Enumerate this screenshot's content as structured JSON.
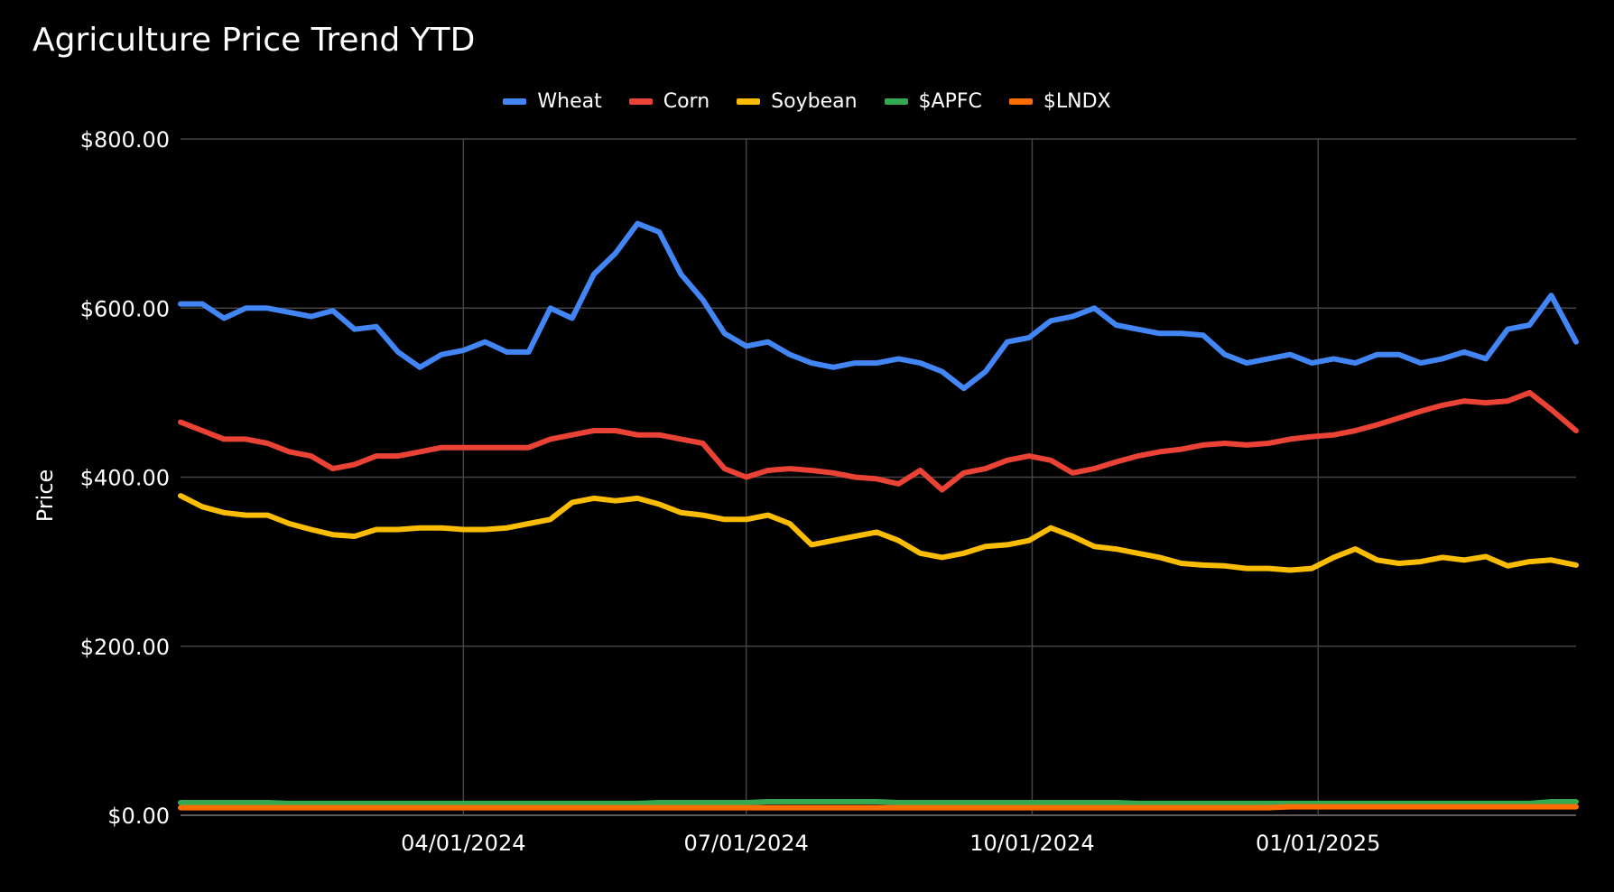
{
  "chart_data": {
    "type": "line",
    "title": "Agriculture Price Trend YTD",
    "ylabel": "Price",
    "xlabel": "",
    "ylim": [
      0,
      800
    ],
    "yticks": [
      "$0.00",
      "$200.00",
      "$400.00",
      "$600.00",
      "$800.00"
    ],
    "ytick_values": [
      0,
      200,
      400,
      600,
      800
    ],
    "xlim": [
      "2024-01-01",
      "2025-03-25"
    ],
    "xticks": [
      "04/01/2024",
      "07/01/2024",
      "10/01/2024",
      "01/01/2025"
    ],
    "xtick_dates": [
      "2024-04-01",
      "2024-07-01",
      "2024-10-01",
      "2025-01-01"
    ],
    "grid": true,
    "legend_position": "top",
    "x": [
      "2024-01-01",
      "2024-01-08",
      "2024-01-15",
      "2024-01-22",
      "2024-01-29",
      "2024-02-05",
      "2024-02-12",
      "2024-02-19",
      "2024-02-26",
      "2024-03-04",
      "2024-03-11",
      "2024-03-18",
      "2024-03-25",
      "2024-04-01",
      "2024-04-08",
      "2024-04-15",
      "2024-04-22",
      "2024-04-29",
      "2024-05-06",
      "2024-05-13",
      "2024-05-20",
      "2024-05-27",
      "2024-06-03",
      "2024-06-10",
      "2024-06-17",
      "2024-06-24",
      "2024-07-01",
      "2024-07-08",
      "2024-07-15",
      "2024-07-22",
      "2024-07-29",
      "2024-08-05",
      "2024-08-12",
      "2024-08-19",
      "2024-08-26",
      "2024-09-02",
      "2024-09-09",
      "2024-09-16",
      "2024-09-23",
      "2024-09-30",
      "2024-10-07",
      "2024-10-14",
      "2024-10-21",
      "2024-10-28",
      "2024-11-04",
      "2024-11-11",
      "2024-11-18",
      "2024-11-25",
      "2024-12-02",
      "2024-12-09",
      "2024-12-16",
      "2024-12-23",
      "2024-12-30",
      "2025-01-06",
      "2025-01-13",
      "2025-01-20",
      "2025-01-27",
      "2025-02-03",
      "2025-02-10",
      "2025-02-17",
      "2025-02-24",
      "2025-03-03",
      "2025-03-10",
      "2025-03-17",
      "2025-03-25"
    ],
    "series": [
      {
        "name": "Wheat",
        "color": "#4285f4",
        "values": [
          605,
          605,
          588,
          600,
          600,
          595,
          590,
          597,
          575,
          578,
          548,
          530,
          545,
          550,
          560,
          548,
          548,
          600,
          588,
          640,
          665,
          700,
          690,
          640,
          610,
          570,
          555,
          560,
          545,
          535,
          530,
          535,
          535,
          540,
          535,
          525,
          505,
          525,
          560,
          565,
          585,
          590,
          600,
          580,
          575,
          570,
          570,
          568,
          545,
          535,
          540,
          545,
          535,
          540,
          535,
          545,
          545,
          535,
          540,
          548,
          540,
          575,
          580,
          615,
          560
        ]
      },
      {
        "name": "Corn",
        "color": "#ea4335",
        "values": [
          465,
          455,
          445,
          445,
          440,
          430,
          425,
          410,
          415,
          425,
          425,
          430,
          435,
          435,
          435,
          435,
          435,
          445,
          450,
          455,
          455,
          450,
          450,
          445,
          440,
          410,
          400,
          408,
          410,
          408,
          405,
          400,
          398,
          392,
          408,
          385,
          405,
          410,
          420,
          425,
          420,
          405,
          410,
          418,
          425,
          430,
          433,
          438,
          440,
          438,
          440,
          445,
          448,
          450,
          455,
          462,
          470,
          478,
          485,
          490,
          488,
          490,
          500,
          480,
          455
        ]
      },
      {
        "name": "Soybean",
        "color": "#fbbc04",
        "values": [
          378,
          365,
          358,
          355,
          355,
          345,
          338,
          332,
          330,
          338,
          338,
          340,
          340,
          338,
          338,
          340,
          345,
          350,
          370,
          375,
          372,
          375,
          368,
          358,
          355,
          350,
          350,
          355,
          345,
          320,
          325,
          330,
          335,
          325,
          310,
          305,
          310,
          318,
          320,
          325,
          340,
          330,
          318,
          315,
          310,
          305,
          298,
          296,
          295,
          292,
          292,
          290,
          292,
          305,
          315,
          302,
          298,
          300,
          305,
          302,
          306,
          295,
          300,
          302,
          296
        ]
      },
      {
        "name": "$APFC",
        "color": "#34a853",
        "values": [
          15,
          15,
          15,
          15,
          15,
          14,
          14,
          14,
          14,
          14,
          14,
          14,
          14,
          14,
          14,
          14,
          14,
          14,
          14,
          14,
          14,
          14,
          15,
          15,
          15,
          15,
          15,
          16,
          16,
          16,
          16,
          16,
          16,
          15,
          15,
          15,
          15,
          15,
          15,
          15,
          15,
          15,
          15,
          15,
          14,
          14,
          14,
          14,
          14,
          14,
          14,
          14,
          14,
          14,
          14,
          14,
          14,
          14,
          14,
          14,
          14,
          14,
          14,
          16,
          16
        ]
      },
      {
        "name": "$LNDX",
        "color": "#ff6d01",
        "values": [
          9,
          9,
          9,
          9,
          9,
          9,
          9,
          9,
          9,
          9,
          9,
          9,
          9,
          9,
          9,
          9,
          9,
          9,
          9,
          9,
          9,
          9,
          9,
          9,
          9,
          9,
          9,
          9,
          9,
          9,
          9,
          9,
          9,
          9,
          9,
          9,
          9,
          9,
          9,
          9,
          9,
          9,
          9,
          9,
          9,
          9,
          9,
          9,
          9,
          9,
          9,
          10,
          10,
          10,
          10,
          10,
          10,
          10,
          10,
          10,
          10,
          10,
          10,
          10,
          10
        ]
      }
    ]
  }
}
